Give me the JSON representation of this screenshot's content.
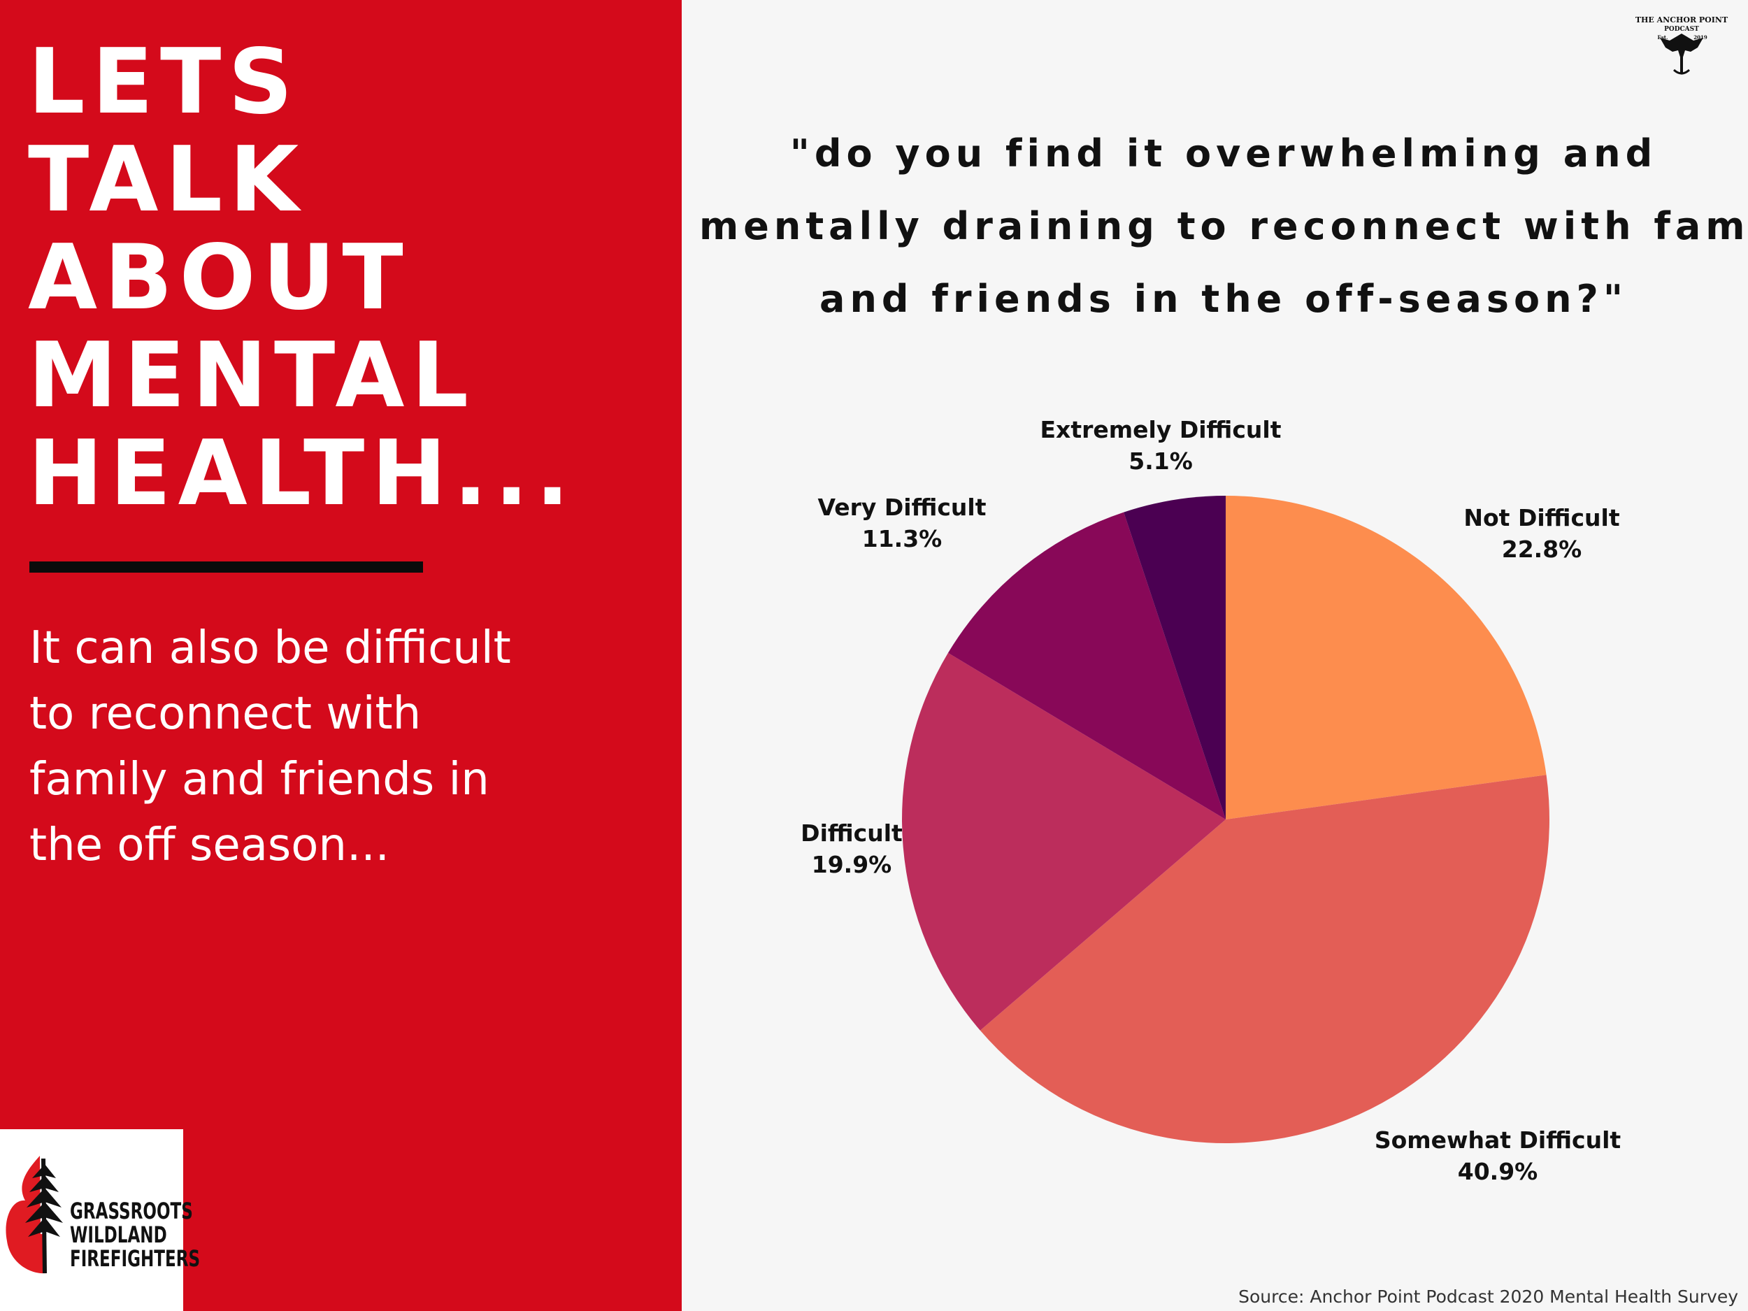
{
  "headline": [
    "LETS",
    "TALK",
    "ABOUT",
    "MENTAL",
    "HEALTH..."
  ],
  "body_text": [
    "It can also be difficult",
    "to reconnect with",
    "family and friends in",
    "the off season..."
  ],
  "logo": {
    "lines": [
      "GRASSROOTS",
      "WILDLAND",
      "FIREFIGHTERS"
    ],
    "icon": "flame-tree-icon"
  },
  "podcast_logo": {
    "name": "THE ANCHOR POINT",
    "sub": "PODCAST",
    "est": "Est.",
    "year": "2019",
    "icon": "eagle-anchor-icon"
  },
  "question": [
    "\"do you find it overwhelming and",
    "mentally draining to reconnect with family",
    "and friends in the off-season?\""
  ],
  "source": "Source: Anchor Point Podcast 2020 Mental Health Survey",
  "colors": {
    "left_panel": "#d40a1b",
    "background": "#f6f6f6"
  },
  "chart_data": {
    "type": "pie",
    "title": "\"do you find it overwhelming and mentally draining to reconnect with family and friends in the off-season?\"",
    "categories": [
      "Not Difficult",
      "Somewhat Difficult",
      "Difficult",
      "Very Difficult",
      "Extremely Difficult"
    ],
    "values": [
      22.8,
      40.9,
      19.9,
      11.3,
      5.1
    ],
    "value_labels": [
      "22.8%",
      "40.9%",
      "19.9%",
      "11.3%",
      "5.1%"
    ],
    "colors": [
      "#fd8d4e",
      "#e35e56",
      "#bc2d5c",
      "#880858",
      "#4b0052"
    ],
    "start": "12 o'clock",
    "direction": "clockwise",
    "legend": "none"
  }
}
